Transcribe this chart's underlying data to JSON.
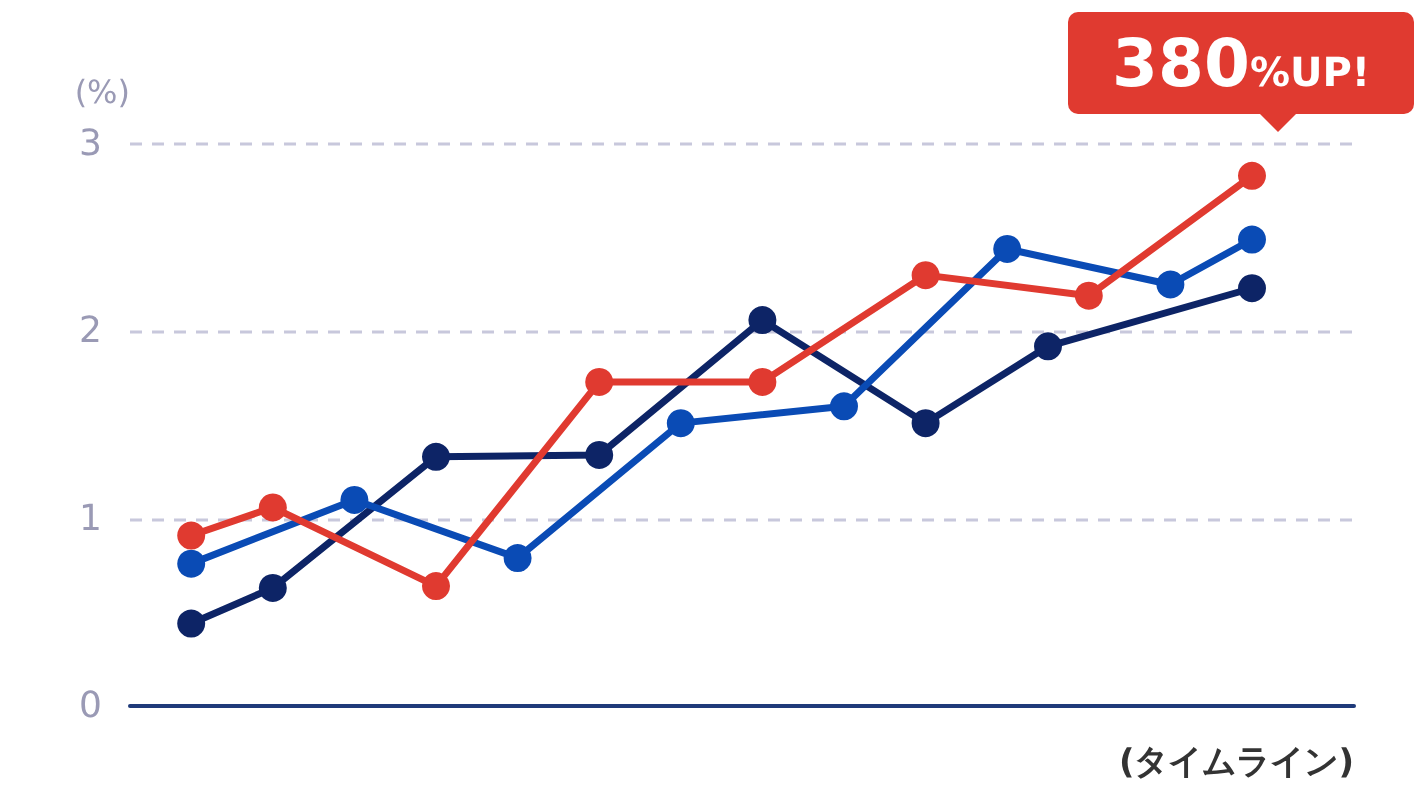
{
  "chart_data": {
    "type": "line",
    "ylabel": "(%)",
    "xlabel": "(タイムライン)",
    "categories": [
      null,
      null,
      null,
      null,
      null,
      null,
      null,
      null,
      null,
      null,
      null,
      null,
      null,
      null,
      null,
      null,
      null,
      null,
      null,
      null,
      null,
      null,
      null,
      null,
      null,
      null,
      null,
      null,
      null,
      null
    ],
    "ylim": [
      0,
      3
    ],
    "yticks": [
      0,
      1,
      2,
      3
    ],
    "tick_labels": "y",
    "grid": "y",
    "marker": "circle",
    "line_style": "solid",
    "annotations": [
      "380%UP!"
    ],
    "series": [
      {
        "color": "#0d2466",
        "values": [
          null,
          0.44,
          null,
          0.63,
          null,
          null,
          null,
          1.33,
          null,
          null,
          null,
          1.34,
          null,
          null,
          null,
          2.06,
          null,
          null,
          null,
          1.51,
          null,
          null,
          1.92,
          null,
          null,
          null,
          null,
          2.23,
          null,
          null
        ]
      },
      {
        "color": "#0a4bb5",
        "values": [
          null,
          0.76,
          null,
          null,
          null,
          1.1,
          null,
          null,
          null,
          0.79,
          null,
          null,
          null,
          1.51,
          null,
          null,
          null,
          1.6,
          null,
          null,
          null,
          2.44,
          null,
          null,
          null,
          2.25,
          null,
          2.49,
          null,
          null
        ]
      },
      {
        "color": "#e03a30",
        "values": [
          null,
          0.91,
          null,
          1.06,
          null,
          null,
          null,
          0.64,
          null,
          null,
          null,
          1.73,
          null,
          null,
          null,
          1.73,
          null,
          null,
          null,
          2.3,
          null,
          null,
          null,
          2.19,
          null,
          null,
          null,
          2.83,
          null,
          null
        ]
      }
    ]
  }
}
